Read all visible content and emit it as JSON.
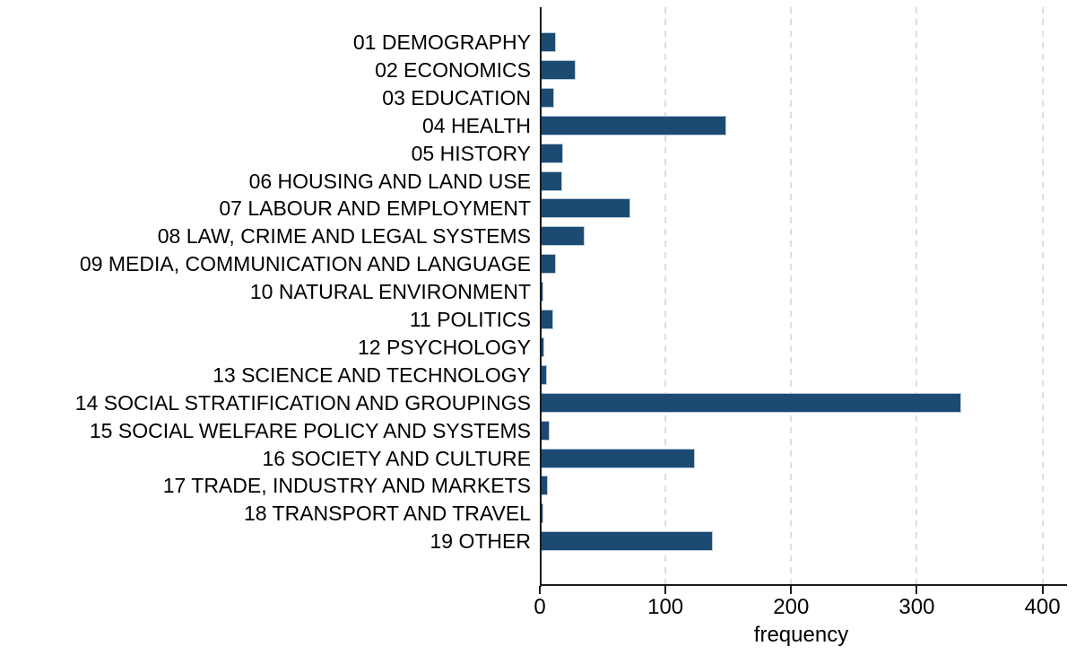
{
  "chart_data": {
    "type": "bar",
    "orientation": "horizontal",
    "title": "",
    "xlabel": "frequency",
    "ylabel": "",
    "categories": [
      "01 DEMOGRAPHY",
      "02 ECONOMICS",
      "03 EDUCATION",
      "04 HEALTH",
      "05 HISTORY",
      "06 HOUSING AND LAND USE",
      "07 LABOUR AND EMPLOYMENT",
      "08 LAW, CRIME AND LEGAL SYSTEMS",
      "09 MEDIA, COMMUNICATION AND LANGUAGE",
      "10 NATURAL ENVIRONMENT",
      "11 POLITICS",
      "12 PSYCHOLOGY",
      "13 SCIENCE AND TECHNOLOGY",
      "14 SOCIAL STRATIFICATION AND GROUPINGS",
      "15 SOCIAL WELFARE POLICY AND SYSTEMS",
      "16 SOCIETY AND CULTURE",
      "17 TRADE, INDUSTRY AND MARKETS",
      "18 TRANSPORT AND TRAVEL",
      "19 OTHER"
    ],
    "values": [
      12,
      28,
      11,
      148,
      18,
      17,
      71,
      35,
      12,
      2,
      10,
      3,
      5,
      335,
      7,
      123,
      6,
      2,
      137
    ],
    "x_ticks": [
      0,
      100,
      200,
      300,
      400
    ],
    "xlim": [
      0,
      416
    ],
    "grid": "vertical-dashed",
    "legend": "none",
    "bar_color": "#1d4a72",
    "bar_border_color": "#b8cad9",
    "grid_color": "#dedede",
    "axis_color": "#1a1a1a",
    "text_color": "#000000",
    "background": "#ffffff"
  }
}
